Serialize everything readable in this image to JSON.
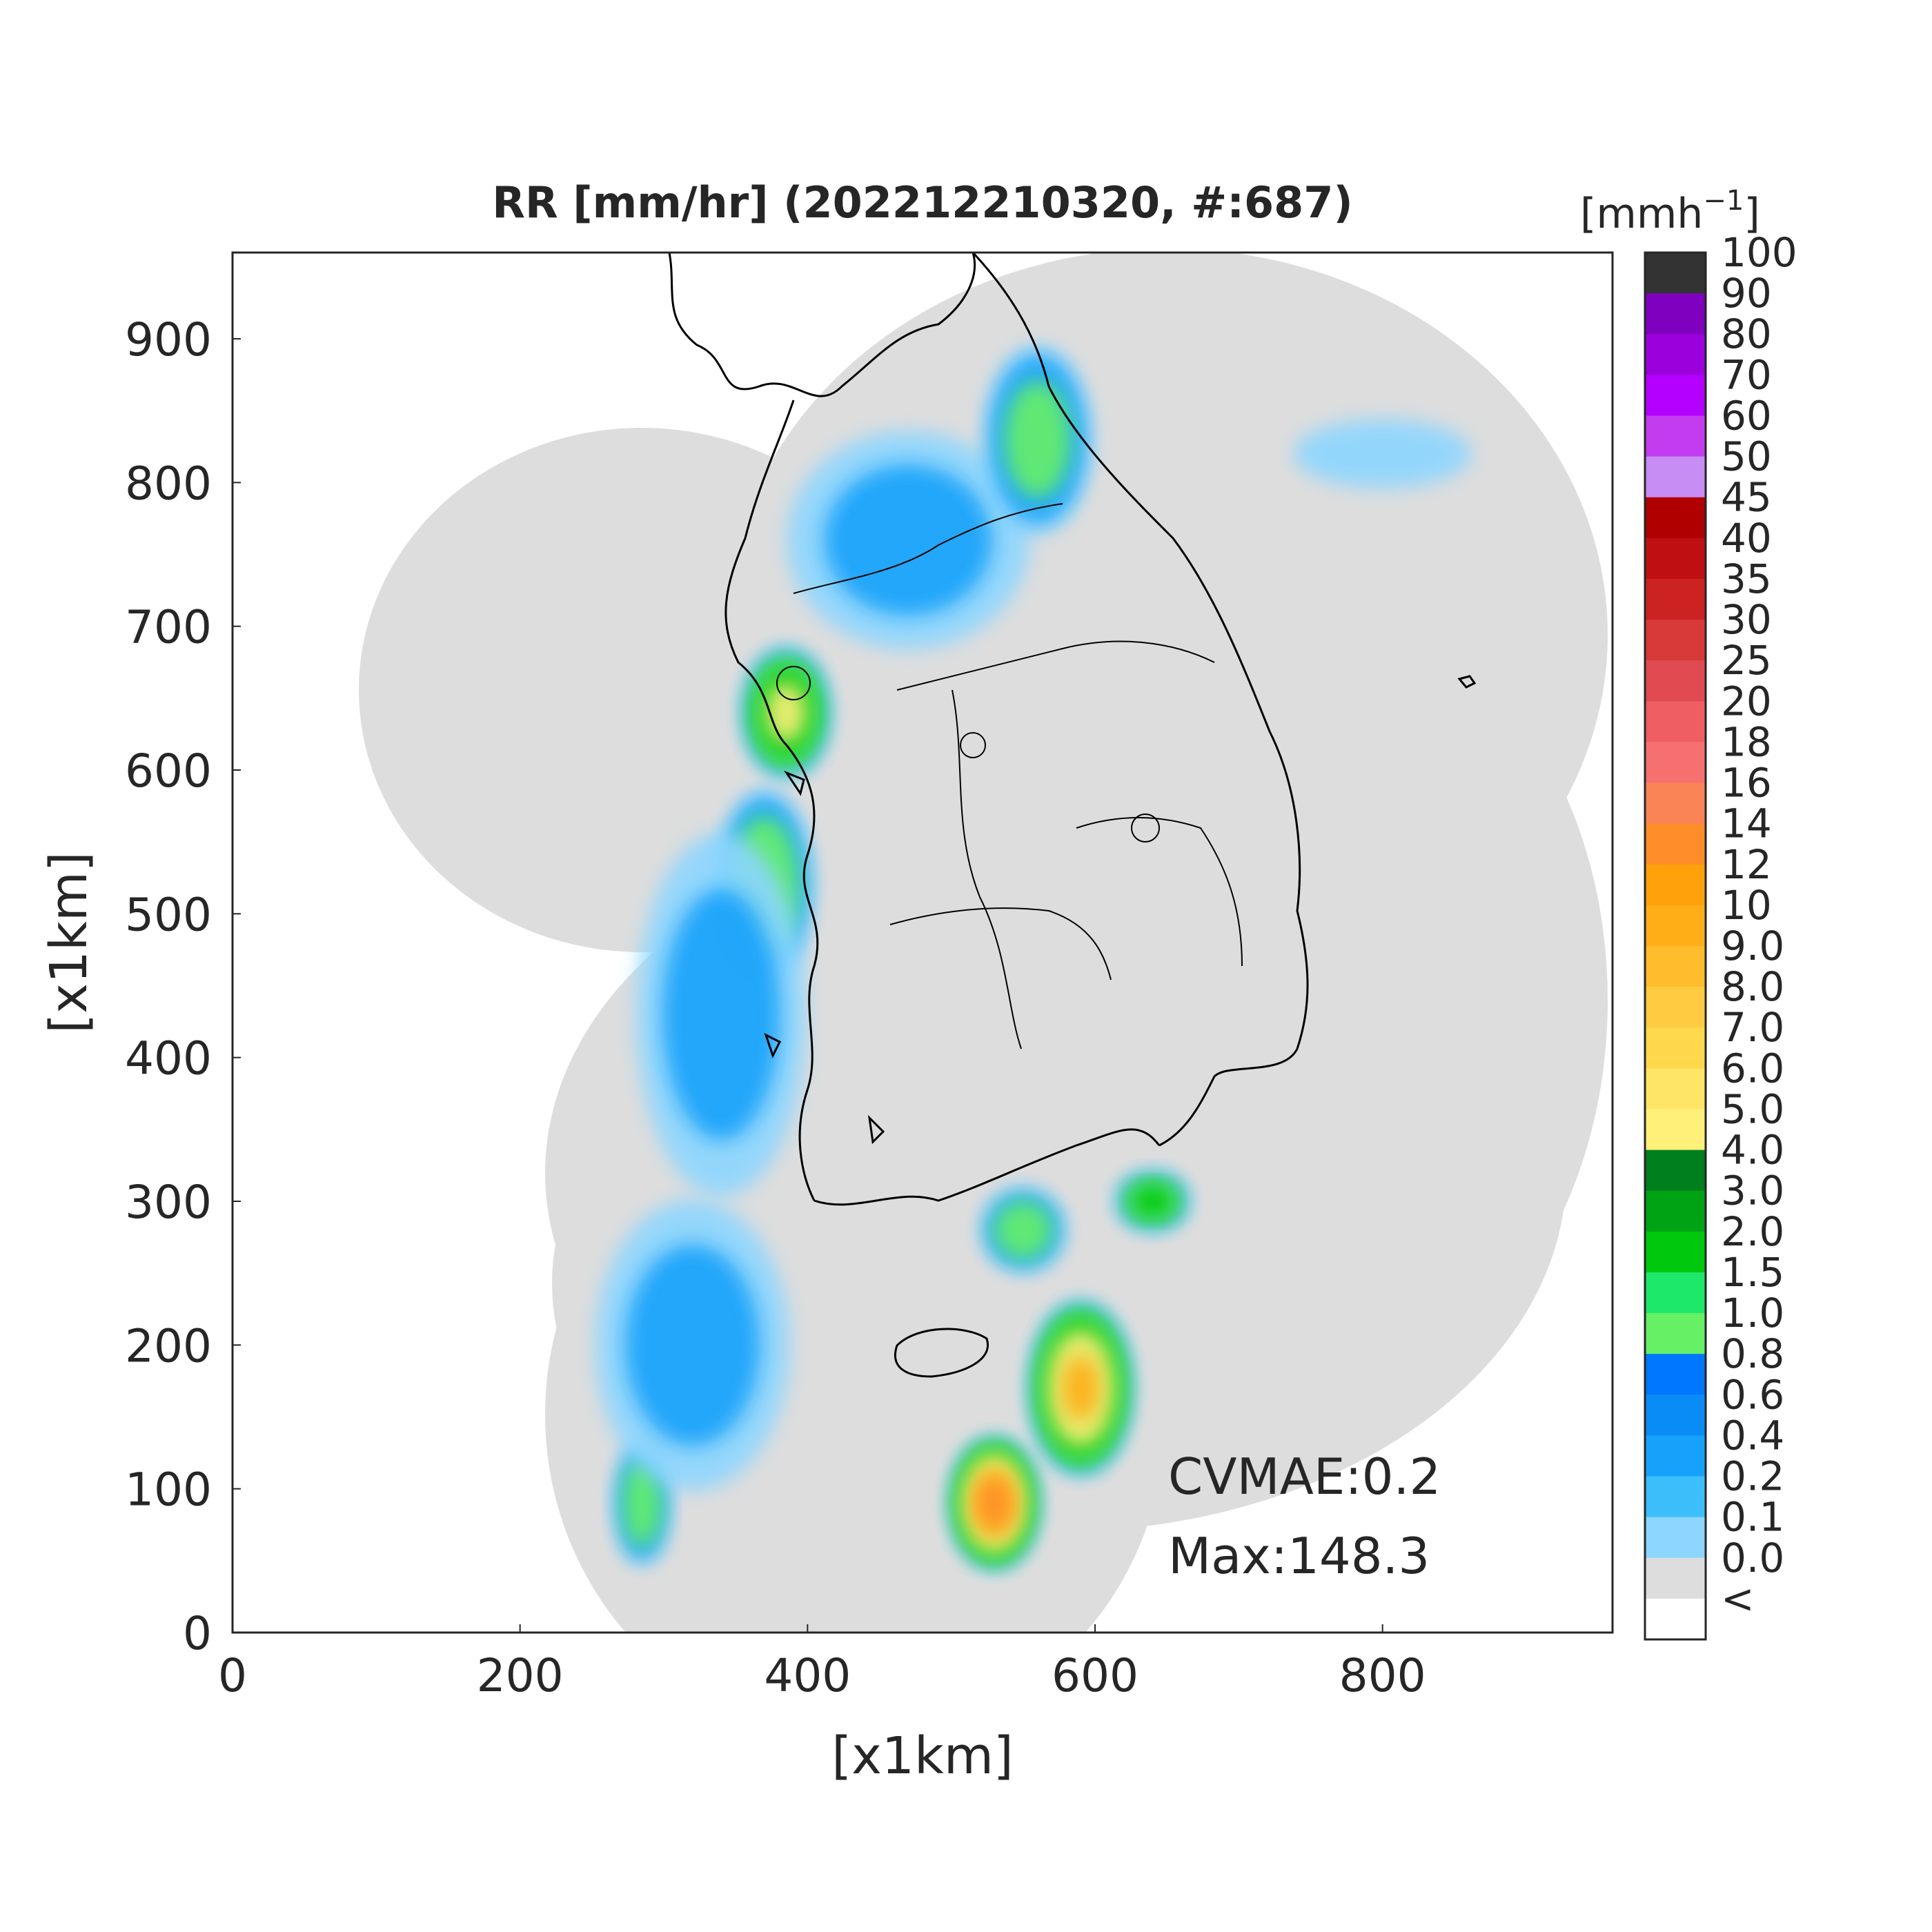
{
  "title": "RR [mm/hr] (202212210320, #:687)",
  "xlabel": "[x1km]",
  "ylabel": "[x1km]",
  "annotations": {
    "cvmae": "CVMAE:0.2",
    "max": "Max:148.3"
  },
  "colorbar": {
    "unit_label": "[mmh",
    "unit_superscript": "−1",
    "unit_close": "]",
    "tick_labels": [
      "100",
      "90",
      "80",
      "70",
      "60",
      "50",
      "45",
      "40",
      "35",
      "30",
      "25",
      "20",
      "18",
      "16",
      "14",
      "12",
      "10",
      "9.0",
      "8.0",
      "7.0",
      "6.0",
      "5.0",
      "4.0",
      "3.0",
      "2.0",
      "1.5",
      "1.0",
      "0.8",
      "0.6",
      "0.4",
      "0.2",
      "0.1",
      "0.0",
      "<"
    ],
    "colors": [
      "#333333",
      "#7f00bf",
      "#9b00dc",
      "#b300ff",
      "#c43cf0",
      "#c88cf5",
      "#b00000",
      "#c00f12",
      "#cc2222",
      "#d83a3a",
      "#e04a50",
      "#ef5f62",
      "#f77070",
      "#fb8456",
      "#ff8e2a",
      "#ffa10a",
      "#ffae18",
      "#ffbc2c",
      "#ffcb40",
      "#ffd84c",
      "#ffe565",
      "#fff07a",
      "#007f1e",
      "#00a313",
      "#00c80c",
      "#1ee86a",
      "#66f066",
      "#0077ff",
      "#0a8cf6",
      "#16a2fa",
      "#3cbefa",
      "#8cd6ff",
      "#dddddd",
      "#ffffff"
    ]
  },
  "chart_data": {
    "type": "heatmap",
    "title": "RR [mm/hr] (202212210320, #:687)",
    "xlabel": "[x1km]",
    "ylabel": "[x1km]",
    "xlim": [
      0,
      960
    ],
    "ylim": [
      0,
      960
    ],
    "xticks": [
      0,
      200,
      400,
      600,
      800
    ],
    "yticks": [
      0,
      100,
      200,
      300,
      400,
      500,
      600,
      700,
      800,
      900
    ],
    "colorbar_levels": [
      0.0,
      0.1,
      0.2,
      0.4,
      0.6,
      0.8,
      1.0,
      1.5,
      2.0,
      3.0,
      4.0,
      5.0,
      6.0,
      7.0,
      8.0,
      9.0,
      10,
      12,
      14,
      16,
      18,
      20,
      25,
      30,
      35,
      40,
      45,
      50,
      60,
      70,
      80,
      90,
      100
    ],
    "statistics": {
      "CVMAE": 0.2,
      "Max": 148.3
    },
    "coverage": "radar composite (gray = 0.0 mm/hr, white = no data)",
    "rain_cells": [
      {
        "x": 385,
        "y": 640,
        "sx": 30,
        "sy": 45,
        "rate": 6
      },
      {
        "x": 370,
        "y": 520,
        "sx": 35,
        "sy": 70,
        "rate": 2
      },
      {
        "x": 590,
        "y": 170,
        "sx": 35,
        "sy": 60,
        "rate": 10
      },
      {
        "x": 530,
        "y": 90,
        "sx": 30,
        "sy": 45,
        "rate": 14
      },
      {
        "x": 640,
        "y": 300,
        "sx": 25,
        "sy": 20,
        "rate": 4
      },
      {
        "x": 550,
        "y": 280,
        "sx": 30,
        "sy": 30,
        "rate": 2
      },
      {
        "x": 285,
        "y": 90,
        "sx": 20,
        "sy": 45,
        "rate": 2
      },
      {
        "x": 340,
        "y": 430,
        "sx": 70,
        "sy": 150,
        "rate": 0.6
      },
      {
        "x": 320,
        "y": 200,
        "sx": 80,
        "sy": 120,
        "rate": 0.6
      },
      {
        "x": 470,
        "y": 760,
        "sx": 100,
        "sy": 90,
        "rate": 0.6
      },
      {
        "x": 800,
        "y": 820,
        "sx": 90,
        "sy": 35,
        "rate": 0.3
      },
      {
        "x": 560,
        "y": 830,
        "sx": 40,
        "sy": 70,
        "rate": 1.5
      }
    ]
  }
}
